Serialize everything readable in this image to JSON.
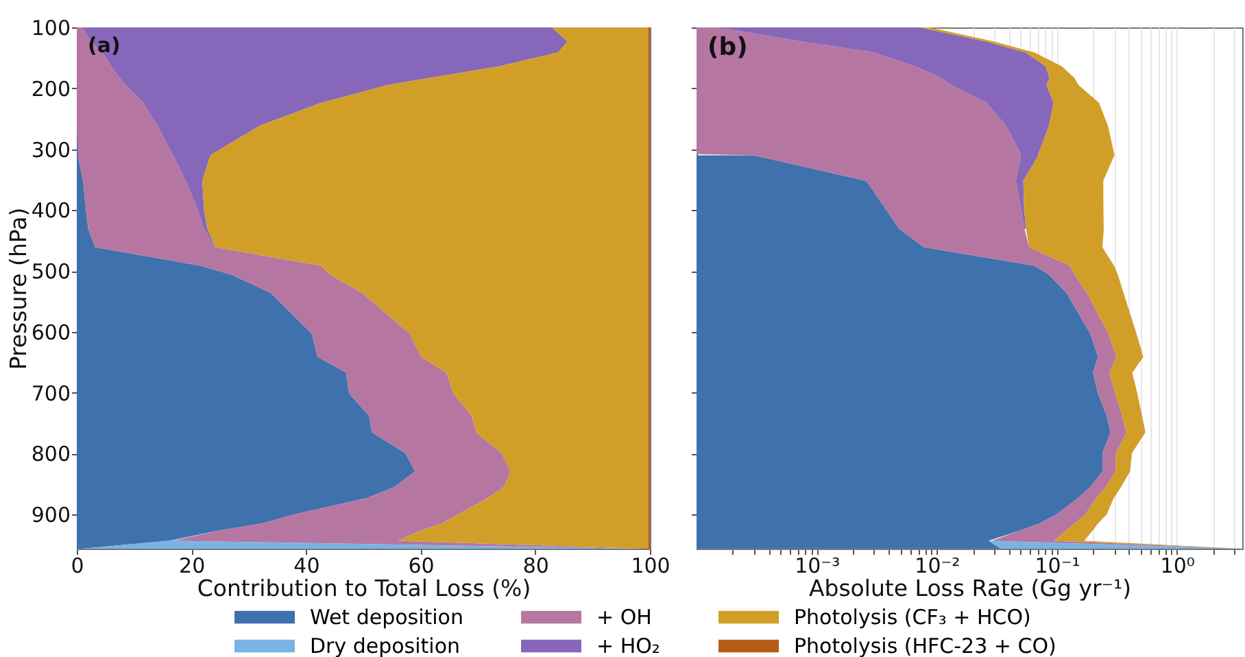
{
  "chart_data": [
    {
      "type": "area",
      "stacked": true,
      "orientation": "horizontal",
      "title": "(a)",
      "xlabel": "Contribution to Total Loss (%)",
      "ylabel": "Pressure (hPa)",
      "legend": "bottom",
      "x": [
        100,
        123,
        141,
        164,
        183,
        194,
        224,
        262,
        310,
        352,
        400,
        431,
        461,
        491,
        506,
        536,
        603,
        641,
        667,
        701,
        738,
        765,
        799,
        829,
        855,
        873,
        900,
        915,
        926,
        943,
        956
      ],
      "xlim": [
        0,
        100
      ],
      "xticks": [
        0,
        20,
        40,
        60,
        80,
        100
      ],
      "ylim": [
        956,
        100
      ],
      "yticks": [
        100,
        200,
        300,
        400,
        500,
        600,
        700,
        800,
        900
      ],
      "series": [
        {
          "name": "Wet deposition",
          "color": "#3f71ad",
          "values": [
            0,
            0,
            0,
            0,
            0,
            0,
            0,
            0,
            0.2,
            1.1,
            1.6,
            2,
            3.2,
            21.4,
            27,
            33.8,
            41,
            42,
            47,
            47.5,
            51,
            51.5,
            57.3,
            59,
            55.4,
            50.6,
            37.9,
            32.2,
            25,
            16,
            1
          ]
        },
        {
          "name": "Dry deposition",
          "color": "#7ab3e5",
          "values": [
            0,
            0,
            0,
            0,
            0,
            0,
            0,
            0,
            0,
            0,
            0,
            0,
            0,
            0,
            0,
            0,
            0,
            0,
            0,
            0,
            0,
            0,
            0,
            0,
            0,
            0,
            0,
            0,
            0,
            1,
            97
          ]
        },
        {
          "name": "+ OH",
          "color": "#b577a2",
          "values": [
            1,
            2.5,
            4.5,
            6,
            7.5,
            8.5,
            11.6,
            14.1,
            16.6,
            17.9,
            19.5,
            20.2,
            21,
            21.2,
            17.2,
            16,
            17.1,
            18.1,
            17.5,
            18.2,
            17.9,
            18.2,
            16.8,
            16.7,
            19.1,
            21.1,
            28.6,
            31.5,
            35.1,
            39.1,
            0.5
          ]
        },
        {
          "name": "+ HO₂",
          "color": "#8767b9",
          "values": [
            81.9,
            83.1,
            79.5,
            67.7,
            54,
            46,
            31,
            17.7,
            6.5,
            2.9,
            1.1,
            0.6,
            0,
            0,
            0,
            0,
            0,
            0,
            0,
            0,
            0,
            0,
            0,
            0,
            0,
            0,
            0,
            0,
            0,
            0,
            0
          ]
        },
        {
          "name": "Photolysis (CF₃ + HCO)",
          "color": "#d19f27",
          "values": [
            16.8,
            14.1,
            15.7,
            26,
            38.2,
            45.2,
            57.1,
            67.9,
            76.4,
            77.8,
            77.5,
            76.9,
            75.5,
            57.1,
            55.5,
            49.9,
            41.6,
            39.6,
            35.2,
            34,
            30.8,
            30,
            25.6,
            24,
            25.2,
            28,
            33.2,
            36,
            39.6,
            43.6,
            1.2
          ]
        },
        {
          "name": "Photolysis (HFC-23 + CO)",
          "color": "#b85b17",
          "values": [
            0.3,
            0.3,
            0.3,
            0.3,
            0.3,
            0.3,
            0.3,
            0.3,
            0.3,
            0.3,
            0.3,
            0.3,
            0.3,
            0.3,
            0.3,
            0.3,
            0.3,
            0.3,
            0.3,
            0.3,
            0.3,
            0.3,
            0.3,
            0.3,
            0.3,
            0.3,
            0.3,
            0.3,
            0.3,
            0.3,
            0.3
          ]
        }
      ]
    },
    {
      "type": "area",
      "stacked": true,
      "orientation": "horizontal",
      "title": "(b)",
      "xlabel": "Absolute Loss Rate (Gg yr⁻¹)",
      "log": "x",
      "grid": "x",
      "tick_labels": "x",
      "legend": "bottom",
      "x": [
        100,
        123,
        141,
        164,
        183,
        194,
        224,
        262,
        308,
        310,
        352,
        400,
        431,
        461,
        491,
        506,
        536,
        603,
        641,
        667,
        701,
        738,
        765,
        799,
        829,
        855,
        873,
        900,
        915,
        926,
        943,
        956
      ],
      "xlim": [
        0.0001,
        3.5
      ],
      "xticks": [
        {
          "value": 0.0002,
          "label": null
        },
        {
          "value": 0.0003,
          "label": null
        },
        {
          "value": 0.0004,
          "label": null
        },
        {
          "value": 0.0005,
          "label": null
        },
        {
          "value": 0.0006,
          "label": null
        },
        {
          "value": 0.0007,
          "label": null
        },
        {
          "value": 0.0008,
          "label": null
        },
        {
          "value": 0.0009,
          "label": null
        },
        {
          "value": 0.001,
          "label": "10⁻³"
        },
        {
          "value": 0.002,
          "label": null
        },
        {
          "value": 0.003,
          "label": null
        },
        {
          "value": 0.004,
          "label": null
        },
        {
          "value": 0.005,
          "label": null
        },
        {
          "value": 0.006,
          "label": null
        },
        {
          "value": 0.007,
          "label": null
        },
        {
          "value": 0.008,
          "label": null
        },
        {
          "value": 0.009,
          "label": null
        },
        {
          "value": 0.01,
          "label": "10⁻²"
        },
        {
          "value": 0.02,
          "label": null
        },
        {
          "value": 0.03,
          "label": null
        },
        {
          "value": 0.04,
          "label": null
        },
        {
          "value": 0.05,
          "label": null
        },
        {
          "value": 0.06,
          "label": null
        },
        {
          "value": 0.07,
          "label": null
        },
        {
          "value": 0.08,
          "label": null
        },
        {
          "value": 0.09,
          "label": null
        },
        {
          "value": 0.1,
          "label": "10⁻¹"
        },
        {
          "value": 0.2,
          "label": null
        },
        {
          "value": 0.3,
          "label": null
        },
        {
          "value": 0.4,
          "label": null
        },
        {
          "value": 0.5,
          "label": null
        },
        {
          "value": 0.6,
          "label": null
        },
        {
          "value": 0.7,
          "label": null
        },
        {
          "value": 0.8,
          "label": null
        },
        {
          "value": 0.9,
          "label": null
        },
        {
          "value": 1,
          "label": "10⁰"
        },
        {
          "value": 2,
          "label": null
        },
        {
          "value": 3,
          "label": null
        }
      ],
      "ylim": [
        956,
        100
      ],
      "yticks": [
        100,
        200,
        300,
        400,
        500,
        600,
        700,
        800,
        900
      ],
      "series": [
        {
          "name": "Wet deposition",
          "color": "#3f71ad",
          "values": [
            null,
            null,
            null,
            null,
            null,
            null,
            null,
            null,
            null,
            0.0003,
            0.0026,
            0.0038,
            0.0049,
            0.0078,
            0.064,
            0.086,
            0.12,
            0.19,
            0.22,
            0.2,
            0.22,
            0.26,
            0.28,
            0.24,
            0.24,
            0.19,
            0.15,
            0.099,
            0.071,
            0.05,
            0.027,
            0.034
          ]
        },
        {
          "name": "Dry deposition",
          "color": "#7ab3e5",
          "values": [
            null,
            null,
            null,
            null,
            null,
            null,
            null,
            null,
            null,
            null,
            null,
            null,
            null,
            null,
            null,
            null,
            null,
            null,
            null,
            null,
            null,
            null,
            null,
            null,
            null,
            null,
            null,
            null,
            null,
            null,
            0.0017,
            3.3
          ]
        },
        {
          "name": "+ OH",
          "color": "#b577a2",
          "values": [
            0.00015,
            0.00075,
            0.003,
            0.0066,
            0.011,
            0.013,
            0.026,
            0.038,
            0.05,
            0.05,
            0.043,
            0.047,
            0.049,
            0.051,
            0.064,
            0.055,
            0.058,
            0.079,
            0.094,
            0.074,
            0.086,
            0.091,
            0.1,
            0.071,
            0.068,
            0.065,
            0.063,
            0.074,
            0.069,
            0.07,
            0.066,
            0.017
          ]
        },
        {
          "name": "+ HO₂",
          "color": "#8767b9",
          "values": [
            0.0071,
            0.025,
            0.052,
            0.074,
            0.076,
            0.069,
            0.068,
            0.048,
            0.02,
            0.02,
            0.007,
            0.0026,
            0.0015,
            null,
            null,
            null,
            null,
            null,
            null,
            null,
            null,
            null,
            null,
            null,
            null,
            null,
            null,
            null,
            null,
            null,
            null,
            null
          ]
        },
        {
          "name": "Photolysis (CF₃ + HCO)",
          "color": "#d19f27",
          "values": [
            0.0015,
            0.0042,
            0.01,
            0.029,
            0.053,
            0.068,
            0.13,
            0.18,
            0.23,
            0.23,
            0.19,
            0.19,
            0.19,
            0.18,
            0.17,
            0.18,
            0.18,
            0.19,
            0.21,
            0.15,
            0.16,
            0.16,
            0.165,
            0.11,
            0.098,
            0.086,
            0.084,
            0.086,
            0.079,
            0.079,
            0.074,
            0.041
          ]
        },
        {
          "name": "Photolysis (HFC-23 + CO)",
          "color": "#b85b17",
          "values": [
            null,
            null,
            0.0002,
            0.00033,
            0.00042,
            0.00045,
            0.00066,
            0.00081,
            0.0009,
            0.0009,
            0.00072,
            0.00072,
            0.00074,
            0.00074,
            0.0009,
            0.00096,
            0.0011,
            0.0014,
            0.0016,
            0.0013,
            0.0014,
            0.0015,
            0.0017,
            0.0013,
            0.0012,
            0.001,
            0.0009,
            0.00078,
            0.00066,
            0.0006,
            0.0005,
            0.01
          ]
        }
      ]
    }
  ]
}
